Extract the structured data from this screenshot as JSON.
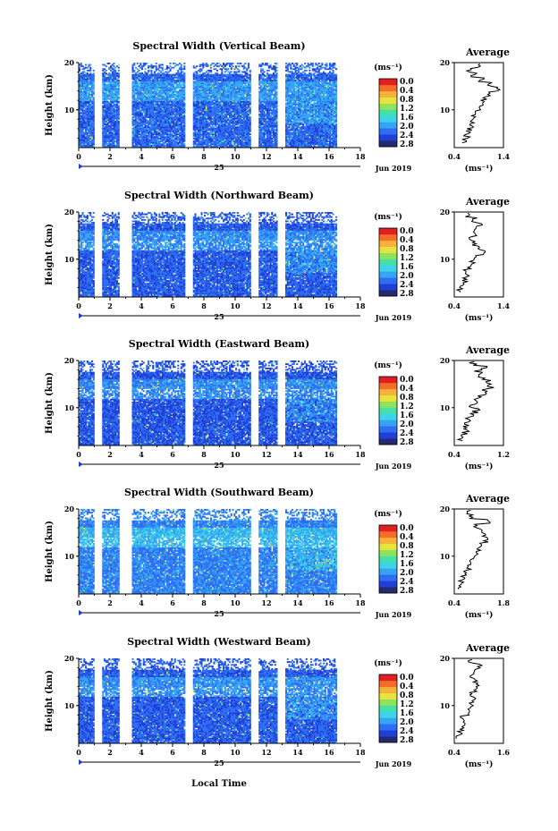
{
  "figure": {
    "x_axis_title": "Local Time",
    "date_label": "25",
    "month_year": "Jun 2019",
    "units_label": "(ms⁻¹)",
    "avg_title": "Average",
    "avg_xlabel": "(ms⁻¹)"
  },
  "colors": [
    "#232a6e",
    "#1f3fd6",
    "#2f6ef2",
    "#35a4f5",
    "#3ed3e8",
    "#44e0a8",
    "#8ee25c",
    "#e6e43e",
    "#f6b23a",
    "#f46e2a",
    "#e02020"
  ],
  "chart_data": [
    {
      "type": "heatmap",
      "title": "Spectral Width (Vertical Beam)",
      "ylabel": "Height (km)",
      "xticks": [
        "0",
        "2",
        "4",
        "6",
        "8",
        "10",
        "12",
        "14",
        "16",
        "18"
      ],
      "xlim": [
        0,
        18
      ],
      "yticks": [
        "20",
        "10"
      ],
      "ylim": [
        2,
        20
      ],
      "colorbar_ticks": [
        "2.8",
        "2.4",
        "2.0",
        "1.6",
        "1.2",
        "0.8",
        "0.4",
        "0.0"
      ],
      "data_gaps_hours": [
        [
          0.9,
          1.5
        ],
        [
          2.6,
          3.4
        ],
        [
          6.7,
          7.2
        ],
        [
          10.9,
          11.4
        ],
        [
          12.6,
          13.1
        ]
      ],
      "base_level": 0.55,
      "avg": {
        "xlim": [
          0.4,
          1.4
        ],
        "xtick_labels": [
          "0.4",
          "1.4"
        ],
        "height_km": [
          3,
          4,
          5,
          6,
          7,
          8,
          9,
          10,
          11,
          12,
          13,
          14,
          15,
          16,
          17,
          18,
          19
        ],
        "value": [
          0.6,
          0.65,
          0.7,
          0.72,
          0.75,
          0.78,
          0.85,
          0.9,
          0.95,
          1.0,
          1.1,
          1.3,
          1.1,
          0.95,
          0.8,
          0.7,
          0.9
        ]
      }
    },
    {
      "type": "heatmap",
      "title": "Spectral Width (Northward Beam)",
      "ylabel": "Height (km)",
      "xticks": [
        "0",
        "2",
        "4",
        "6",
        "8",
        "10",
        "12",
        "14",
        "16",
        "18"
      ],
      "xlim": [
        0,
        18
      ],
      "yticks": [
        "20",
        "10"
      ],
      "ylim": [
        2,
        20
      ],
      "colorbar_ticks": [
        "2.8",
        "2.4",
        "2.0",
        "1.6",
        "1.2",
        "0.8",
        "0.4",
        "0.0"
      ],
      "data_gaps_hours": [
        [
          0.9,
          1.5
        ],
        [
          2.6,
          3.4
        ],
        [
          6.7,
          7.2
        ],
        [
          10.9,
          11.4
        ],
        [
          12.6,
          13.1
        ]
      ],
      "base_level": 0.5,
      "avg": {
        "xlim": [
          0.4,
          1.4
        ],
        "xtick_labels": [
          "0.4",
          "1.4"
        ],
        "height_km": [
          3,
          4,
          5,
          6,
          7,
          8,
          9,
          10,
          11,
          12,
          13,
          14,
          15,
          16,
          17,
          18,
          19
        ],
        "value": [
          0.5,
          0.55,
          0.6,
          0.65,
          0.6,
          0.7,
          0.75,
          0.8,
          1.0,
          0.9,
          0.8,
          0.75,
          0.8,
          0.85,
          0.9,
          0.8,
          0.7
        ]
      }
    },
    {
      "type": "heatmap",
      "title": "Spectral Width (Eastward Beam)",
      "ylabel": "Height (km)",
      "xticks": [
        "0",
        "2",
        "4",
        "6",
        "8",
        "10",
        "12",
        "14",
        "16",
        "18"
      ],
      "xlim": [
        0,
        18
      ],
      "yticks": [
        "20",
        "10"
      ],
      "ylim": [
        2,
        20
      ],
      "colorbar_ticks": [
        "2.8",
        "2.4",
        "2.0",
        "1.6",
        "1.2",
        "0.8",
        "0.4",
        "0.0"
      ],
      "data_gaps_hours": [
        [
          0.9,
          1.5
        ],
        [
          2.6,
          3.4
        ],
        [
          6.7,
          7.2
        ],
        [
          10.9,
          11.4
        ],
        [
          12.6,
          13.1
        ]
      ],
      "base_level": 0.45,
      "avg": {
        "xlim": [
          0.4,
          1.2
        ],
        "xtick_labels": [
          "0.4",
          "1.2"
        ],
        "height_km": [
          3,
          4,
          5,
          6,
          7,
          8,
          9,
          10,
          11,
          12,
          13,
          14,
          15,
          16,
          17,
          18,
          19
        ],
        "value": [
          0.5,
          0.55,
          0.6,
          0.6,
          0.65,
          0.7,
          0.75,
          0.7,
          0.8,
          0.85,
          0.9,
          1.0,
          0.95,
          0.85,
          0.8,
          0.9,
          0.7
        ]
      }
    },
    {
      "type": "heatmap",
      "title": "Spectral Width (Southward Beam)",
      "ylabel": "Height (km)",
      "xticks": [
        "0",
        "2",
        "4",
        "6",
        "8",
        "10",
        "12",
        "14",
        "16",
        "18"
      ],
      "xlim": [
        0,
        18
      ],
      "yticks": [
        "20",
        "10"
      ],
      "ylim": [
        2,
        20
      ],
      "colorbar_ticks": [
        "2.8",
        "2.4",
        "2.0",
        "1.6",
        "1.2",
        "0.8",
        "0.4",
        "0.0"
      ],
      "data_gaps_hours": [
        [
          0.9,
          1.5
        ],
        [
          2.6,
          3.4
        ],
        [
          6.7,
          7.2
        ],
        [
          10.9,
          11.4
        ],
        [
          12.6,
          13.1
        ]
      ],
      "base_level": 0.7,
      "avg": {
        "xlim": [
          0.4,
          1.8
        ],
        "xtick_labels": [
          "0.4",
          "1.8"
        ],
        "height_km": [
          3,
          4,
          5,
          6,
          7,
          8,
          9,
          10,
          11,
          12,
          13,
          14,
          15,
          16,
          17,
          18,
          19
        ],
        "value": [
          0.55,
          0.6,
          0.65,
          0.7,
          0.8,
          0.85,
          0.9,
          1.0,
          1.1,
          1.2,
          1.3,
          1.25,
          1.15,
          1.0,
          1.4,
          0.9,
          0.8
        ]
      }
    },
    {
      "type": "heatmap",
      "title": "Spectral Width (Westward Beam)",
      "ylabel": "Height (km)",
      "xticks": [
        "0",
        "2",
        "4",
        "6",
        "8",
        "10",
        "12",
        "14",
        "16",
        "18"
      ],
      "xlim": [
        0,
        18
      ],
      "yticks": [
        "20",
        "10"
      ],
      "ylim": [
        2,
        20
      ],
      "colorbar_ticks": [
        "2.8",
        "2.4",
        "2.0",
        "1.6",
        "1.2",
        "0.8",
        "0.4",
        "0.0"
      ],
      "data_gaps_hours": [
        [
          0.9,
          1.5
        ],
        [
          2.6,
          3.4
        ],
        [
          6.7,
          7.2
        ],
        [
          10.9,
          11.4
        ],
        [
          12.6,
          13.1
        ]
      ],
      "base_level": 0.5,
      "avg": {
        "xlim": [
          0.4,
          1.6
        ],
        "xtick_labels": [
          "0.4",
          "1.6"
        ],
        "height_km": [
          3,
          4,
          5,
          6,
          7,
          8,
          9,
          10,
          11,
          12,
          13,
          14,
          15,
          16,
          17,
          18,
          19
        ],
        "value": [
          0.5,
          0.55,
          0.6,
          0.65,
          0.6,
          0.7,
          0.75,
          0.8,
          0.85,
          0.8,
          0.9,
          0.95,
          0.9,
          0.85,
          0.9,
          1.0,
          0.8
        ]
      }
    }
  ]
}
